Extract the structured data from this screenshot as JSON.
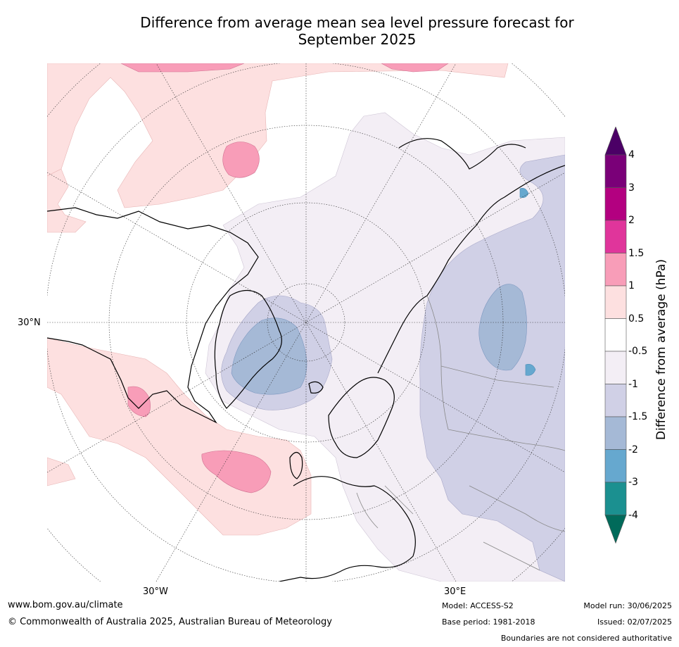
{
  "title_line1": "Difference from average mean sea level pressure forecast for",
  "title_line2": "September 2025",
  "axis_labels": {
    "lat30n": "30°N",
    "lon30w": "30°W",
    "lon30e": "30°E"
  },
  "colorbar": {
    "label": "Difference from average (hPa)",
    "ticks": [
      "4",
      "3",
      "2",
      "1.5",
      "1",
      "0.5",
      "-0.5",
      "-1",
      "-1.5",
      "-2",
      "-3",
      "-4"
    ],
    "colors": [
      "#4b0066",
      "#7a0078",
      "#b30080",
      "#e0359b",
      "#f89db8",
      "#fde0e0",
      "#ffffff",
      "#f3eef5",
      "#d0d0e6",
      "#a5b9d6",
      "#66a8cf",
      "#1b9090",
      "#006a5a"
    ]
  },
  "footer": {
    "url": "www.bom.gov.au/climate",
    "copyright": "© Commonwealth of Australia 2025, Australian Bureau of Meteorology",
    "model": "Model: ACCESS-S2",
    "base_period": "Base period: 1981-2018",
    "model_run": "Model run: 30/06/2025",
    "issued": "Issued: 02/07/2025",
    "disclaimer": "Boundaries are not considered authoritative"
  }
}
